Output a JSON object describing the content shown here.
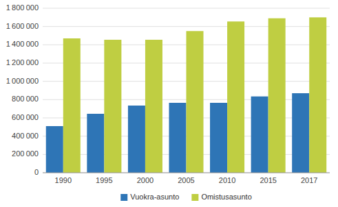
{
  "chart_data": {
    "type": "bar",
    "categories": [
      "1990",
      "1995",
      "2000",
      "2005",
      "2010",
      "2015",
      "2017"
    ],
    "series": [
      {
        "name": "Vuokra-asunto",
        "color": "#2E75B6",
        "values": [
          510000,
          645000,
          735000,
          765000,
          765000,
          835000,
          870000
        ]
      },
      {
        "name": "Omistusasunto",
        "color": "#BFCE42",
        "values": [
          1470000,
          1455000,
          1455000,
          1550000,
          1655000,
          1690000,
          1700000
        ]
      }
    ],
    "ylim": [
      0,
      1800000
    ],
    "yticks": [
      0,
      {
        "value": 200000,
        "label": "200 000"
      },
      {
        "value": 400000,
        "label": "400 000"
      },
      {
        "value": 600000,
        "label": "600 000"
      },
      {
        "value": 800000,
        "label": "800 000"
      },
      {
        "value": 1000000,
        "label": "1 000 000"
      },
      {
        "value": 1200000,
        "label": "1 200 000"
      },
      {
        "value": 1400000,
        "label": "1 400 000"
      },
      {
        "value": 1600000,
        "label": "1 600 000"
      },
      {
        "value": 1800000,
        "label": "1 800 000"
      }
    ],
    "grid": true,
    "legend": "bottom"
  }
}
